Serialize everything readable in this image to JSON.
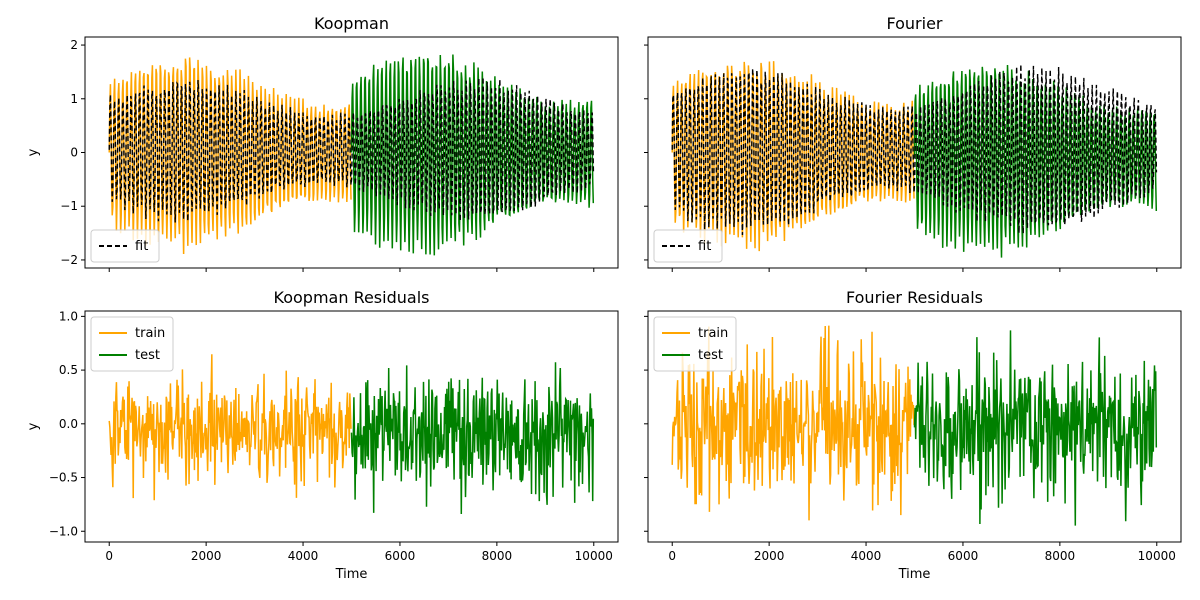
{
  "chart_data": [
    {
      "type": "line",
      "title": "Koopman",
      "xlabel": "",
      "ylabel": "y",
      "xlim": [
        -500,
        10500
      ],
      "ylim": [
        -2.15,
        2.15
      ],
      "x_ticks": [
        0,
        2000,
        4000,
        6000,
        8000,
        10000
      ],
      "x_tick_labels_visible": false,
      "y_ticks": [
        -2,
        -1,
        0,
        1,
        2
      ],
      "y_tick_labels": [
        "−2",
        "−1",
        "0",
        "1",
        "2"
      ],
      "grid": false,
      "legend": {
        "placement": "lower-left",
        "entries": [
          "fit"
        ]
      },
      "series": [
        {
          "name": "",
          "color": "#ffa500",
          "x_range": [
            0,
            5000
          ],
          "y_range": [
            -1.9,
            1.9
          ]
        },
        {
          "name": "",
          "color": "#008000",
          "x_range": [
            5000,
            10000
          ],
          "y_range": [
            -2.0,
            2.0
          ]
        },
        {
          "name": "fit",
          "color": "#000000",
          "style": "dashed",
          "x_range": [
            0,
            10000
          ],
          "y_range": [
            -1.35,
            1.45
          ]
        }
      ]
    },
    {
      "type": "line",
      "title": "Fourier",
      "xlabel": "",
      "ylabel": "",
      "xlim": [
        -500,
        10500
      ],
      "ylim": [
        -2.15,
        2.15
      ],
      "x_ticks": [
        0,
        2000,
        4000,
        6000,
        8000,
        10000
      ],
      "x_tick_labels_visible": false,
      "y_ticks": [
        -2,
        -1,
        0,
        1,
        2
      ],
      "y_tick_labels_visible": false,
      "grid": false,
      "legend": {
        "placement": "lower-left",
        "entries": [
          "fit"
        ]
      },
      "series": [
        {
          "name": "",
          "color": "#ffa500",
          "x_range": [
            0,
            5000
          ],
          "y_range": [
            -1.9,
            1.9
          ]
        },
        {
          "name": "",
          "color": "#008000",
          "x_range": [
            5000,
            10000
          ],
          "y_range": [
            -2.0,
            1.8
          ]
        },
        {
          "name": "fit",
          "color": "#000000",
          "style": "dashed",
          "x_range": [
            0,
            10000
          ],
          "y_range": [
            -1.6,
            1.7
          ]
        }
      ]
    },
    {
      "type": "line",
      "title": "Koopman Residuals",
      "xlabel": "Time",
      "ylabel": "y",
      "xlim": [
        -500,
        10500
      ],
      "ylim": [
        -1.1,
        1.05
      ],
      "x_ticks": [
        0,
        2000,
        4000,
        6000,
        8000,
        10000
      ],
      "x_tick_labels": [
        "0",
        "2000",
        "4000",
        "6000",
        "8000",
        "10000"
      ],
      "y_ticks": [
        -1.0,
        -0.5,
        0.0,
        0.5,
        1.0
      ],
      "y_tick_labels": [
        "−1.0",
        "−0.5",
        "0.0",
        "0.5",
        "1.0"
      ],
      "grid": false,
      "legend": {
        "placement": "upper-left",
        "entries": [
          "train",
          "test"
        ]
      },
      "series": [
        {
          "name": "train",
          "color": "#ffa500",
          "x_range": [
            0,
            5000
          ],
          "y_range": [
            -0.75,
            0.65
          ]
        },
        {
          "name": "test",
          "color": "#008000",
          "x_range": [
            5000,
            10000
          ],
          "y_range": [
            -0.87,
            0.75
          ]
        }
      ]
    },
    {
      "type": "line",
      "title": "Fourier Residuals",
      "xlabel": "Time",
      "ylabel": "",
      "xlim": [
        -500,
        10500
      ],
      "ylim": [
        -1.1,
        1.05
      ],
      "x_ticks": [
        0,
        2000,
        4000,
        6000,
        8000,
        10000
      ],
      "x_tick_labels": [
        "0",
        "2000",
        "4000",
        "6000",
        "8000",
        "10000"
      ],
      "y_ticks": [
        -1.0,
        -0.5,
        0.0,
        0.5,
        1.0
      ],
      "y_tick_labels_visible": false,
      "grid": false,
      "legend": {
        "placement": "upper-left",
        "entries": [
          "train",
          "test"
        ]
      },
      "series": [
        {
          "name": "train",
          "color": "#ffa500",
          "x_range": [
            0,
            5000
          ],
          "y_range": [
            -1.0,
            0.95
          ]
        },
        {
          "name": "test",
          "color": "#008000",
          "x_range": [
            5000,
            10000
          ],
          "y_range": [
            -0.95,
            0.9
          ]
        }
      ]
    }
  ]
}
